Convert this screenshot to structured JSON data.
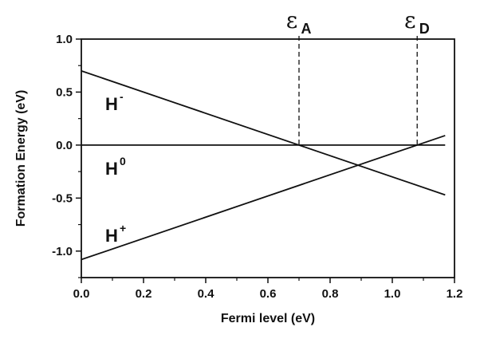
{
  "chart_data": {
    "type": "line",
    "xlabel": "Fermi level (eV)",
    "ylabel": "Formation Energy (eV)",
    "xlim": [
      0,
      1.2
    ],
    "ylim": [
      -1.25,
      1.0
    ],
    "grid": false,
    "x_ticks": [
      "0.0",
      "0.2",
      "0.4",
      "0.6",
      "0.8",
      "1.0",
      "1.2"
    ],
    "y_ticks": [
      "1.0",
      "0.5",
      "0.0",
      "-0.5",
      "-1.0"
    ],
    "series": [
      {
        "base": "H",
        "charge": "-",
        "x": [
          0.0,
          1.17
        ],
        "y": [
          0.7,
          -0.47
        ]
      },
      {
        "base": "H",
        "charge": "0",
        "x": [
          0.0,
          1.17
        ],
        "y": [
          0.0,
          0.0
        ]
      },
      {
        "base": "H",
        "charge": "+",
        "x": [
          0.0,
          1.17
        ],
        "y": [
          -1.08,
          0.09
        ]
      }
    ],
    "markers": [
      {
        "symbol": "ε",
        "subscript": "A",
        "x": 0.7
      },
      {
        "symbol": "ε",
        "subscript": "D",
        "x": 1.08
      }
    ]
  }
}
